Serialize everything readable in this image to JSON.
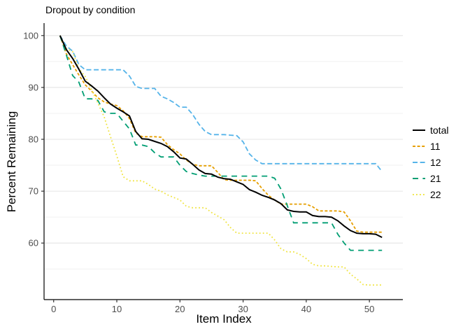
{
  "title": "Dropout by condition",
  "axes": {
    "x_title": "Item Index",
    "y_title": "Percent Remaining",
    "x_tick_labels": [
      "0",
      "10",
      "20",
      "30",
      "40",
      "50"
    ],
    "y_tick_labels": [
      "60",
      "70",
      "80",
      "90",
      "100"
    ],
    "tick_label_color": "#4d4d4d",
    "axis_line_color": "#000000",
    "grid_major_color": "#e4e4e4",
    "grid_minor_color": "#f1f1f1"
  },
  "legend": {
    "position": "right",
    "entries": [
      "total",
      "11",
      "12",
      "21",
      "22"
    ]
  },
  "chart_data": {
    "type": "line",
    "title": "Dropout by condition",
    "xlabel": "Item Index",
    "ylabel": "Percent Remaining",
    "xlim": [
      -1.52,
      55.3
    ],
    "ylim": [
      49.1,
      102.4
    ],
    "x_ticks": [
      0,
      10,
      20,
      30,
      40,
      50
    ],
    "y_ticks": [
      60,
      70,
      80,
      90,
      100
    ],
    "y_minor_ticks": [
      55,
      65,
      75,
      85,
      95
    ],
    "grid": "horizontal-only",
    "legend_position": "right",
    "x": [
      1,
      2,
      3,
      4,
      5,
      6,
      7,
      8,
      9,
      10,
      11,
      12,
      13,
      14,
      15,
      16,
      17,
      18,
      19,
      20,
      21,
      22,
      23,
      24,
      25,
      26,
      27,
      28,
      29,
      30,
      31,
      32,
      33,
      34,
      35,
      36,
      37,
      38,
      39,
      40,
      41,
      42,
      43,
      44,
      45,
      46,
      47,
      48,
      49,
      50,
      51,
      52
    ],
    "series": [
      {
        "name": "total",
        "color": "#000000",
        "linetype": "solid",
        "values": [
          100,
          97.3,
          95.6,
          93.5,
          91.2,
          90.3,
          89.3,
          88,
          86.8,
          86,
          85.3,
          84.5,
          81.5,
          80.1,
          80,
          79.6,
          79.2,
          78.6,
          77.6,
          76.4,
          76.2,
          75.2,
          74.1,
          73.4,
          73.3,
          72.7,
          72.4,
          72.3,
          71.8,
          71.3,
          70.3,
          69.8,
          69.2,
          68.8,
          68.3,
          67.6,
          66.4,
          66.1,
          66,
          66,
          65.3,
          65.1,
          65.1,
          65,
          64.3,
          63.3,
          62.4,
          61.9,
          61.8,
          61.8,
          61.7,
          61.1
        ]
      },
      {
        "name": "11",
        "color": "#E69F00",
        "linetype": "dashed-short",
        "values": [
          100,
          96.5,
          94.4,
          92.4,
          90.5,
          89.3,
          88,
          87.2,
          86.8,
          86.5,
          85.5,
          84,
          81.2,
          80.5,
          80.5,
          80.5,
          80.4,
          79,
          78,
          77.2,
          76,
          75.2,
          74.9,
          74.9,
          74.9,
          73.6,
          72.2,
          72.1,
          72.1,
          72.1,
          72.1,
          72,
          70.5,
          69.2,
          68.3,
          67.5,
          67.5,
          67.5,
          67.5,
          67.5,
          67,
          66.2,
          66.2,
          66.2,
          66.2,
          66,
          64.3,
          62.3,
          62.1,
          62.1,
          62.1,
          62.1
        ]
      },
      {
        "name": "12",
        "color": "#56B4E9",
        "linetype": "dashed-med",
        "values": [
          100,
          98,
          97,
          94.4,
          93.4,
          93.4,
          93.4,
          93.4,
          93.4,
          93.4,
          93.4,
          92.2,
          90.2,
          89.8,
          89.8,
          89.8,
          88.3,
          87.8,
          87.1,
          86.2,
          86.2,
          84.8,
          82.9,
          81.5,
          80.9,
          80.9,
          80.9,
          80.8,
          80.7,
          79.5,
          77.2,
          76,
          75.3,
          75.3,
          75.3,
          75.3,
          75.3,
          75.3,
          75.3,
          75.3,
          75.3,
          75.3,
          75.3,
          75.3,
          75.3,
          75.3,
          75.3,
          75.3,
          75.3,
          75.3,
          75.3,
          73.8
        ]
      },
      {
        "name": "21",
        "color": "#009E73",
        "linetype": "dashed-long",
        "values": [
          100,
          96.3,
          92.3,
          91,
          87.8,
          87.8,
          87.5,
          85.3,
          85,
          85,
          83.5,
          82,
          78.9,
          78.9,
          78.6,
          77.4,
          76.6,
          76.6,
          76.6,
          75,
          73.8,
          73.4,
          73.1,
          72.9,
          72.9,
          72.9,
          72.9,
          72.9,
          72.9,
          72.9,
          72.9,
          72.9,
          72.9,
          72.9,
          72.5,
          70.4,
          67.2,
          63.9,
          63.9,
          63.9,
          63.9,
          63.9,
          63.9,
          63.9,
          61.7,
          60,
          58.6,
          58.6,
          58.6,
          58.6,
          58.6,
          58.6
        ]
      },
      {
        "name": "22",
        "color": "#F0E442",
        "linetype": "dotted",
        "values": [
          100,
          97.5,
          96.9,
          93.6,
          92.1,
          89.6,
          87,
          84.3,
          80.5,
          76.8,
          72.8,
          72,
          72,
          72,
          71.3,
          70.4,
          70,
          69.3,
          68.8,
          68.3,
          67.1,
          66.8,
          66.8,
          66.8,
          65.9,
          65.2,
          64.5,
          63,
          61.9,
          61.9,
          61.9,
          61.9,
          61.9,
          61.9,
          60.6,
          58.9,
          58.3,
          58.3,
          57.8,
          57,
          55.9,
          55.6,
          55.6,
          55.5,
          55.4,
          55.4,
          54,
          53.1,
          52,
          51.9,
          51.9,
          51.9
        ]
      }
    ]
  }
}
